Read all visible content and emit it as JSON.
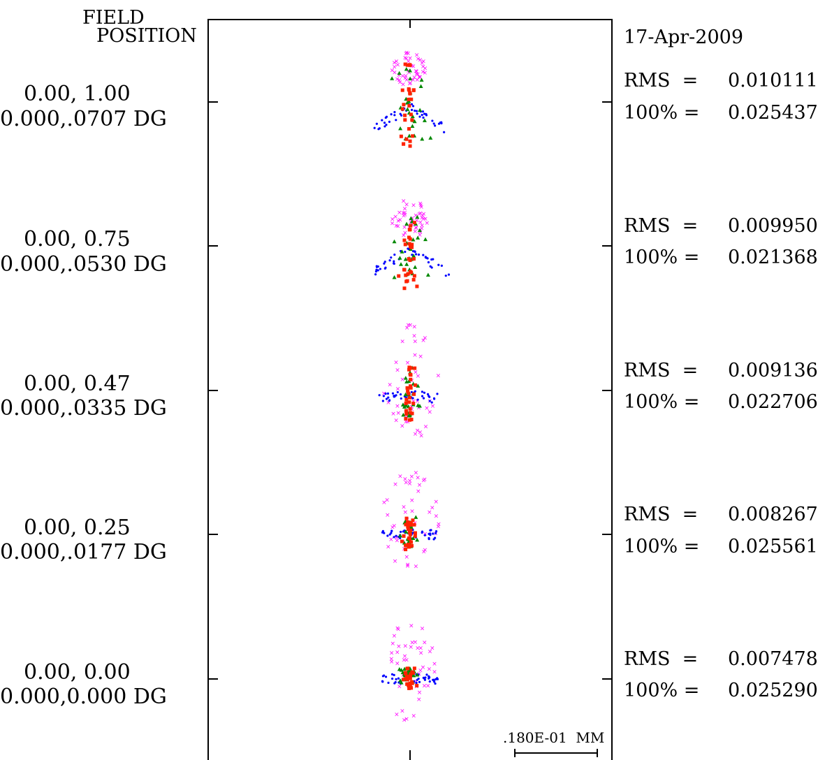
{
  "chart_data": {
    "type": "scatter",
    "plot_kind": "spot diagram",
    "header": {
      "line1": "FIELD",
      "line2": "POSITION"
    },
    "date": "17-Apr-2009",
    "scale_label": ".180E-01  MM",
    "wavelength_colors": [
      "#ff00ff",
      "#ff2200",
      "#008800",
      "#0000ff"
    ],
    "fields": [
      {
        "label1": "0.00, 1.00",
        "label2": "0.000,.0707 DG",
        "rms_label": "RMS  =",
        "rms_value": "0.010111",
        "p100_label": "100% =",
        "p100_value": "0.025437"
      },
      {
        "label1": "0.00, 0.75",
        "label2": "0.000,.0530 DG",
        "rms_label": "RMS  =",
        "rms_value": "0.009950",
        "p100_label": "100% =",
        "p100_value": "0.021368"
      },
      {
        "label1": "0.00, 0.47",
        "label2": "0.000,.0335 DG",
        "rms_label": "RMS  =",
        "rms_value": "0.009136",
        "p100_label": "100% =",
        "p100_value": "0.022706"
      },
      {
        "label1": "0.00, 0.25",
        "label2": "0.000,.0177 DG",
        "rms_label": "RMS  =",
        "rms_value": "0.008267",
        "p100_label": "100% =",
        "p100_value": "0.025561"
      },
      {
        "label1": "0.00, 0.00",
        "label2": "0.000,0.000 DG",
        "rms_label": "RMS  =",
        "rms_value": "0.007478",
        "p100_label": "100% =",
        "p100_value": "0.025290"
      }
    ]
  }
}
